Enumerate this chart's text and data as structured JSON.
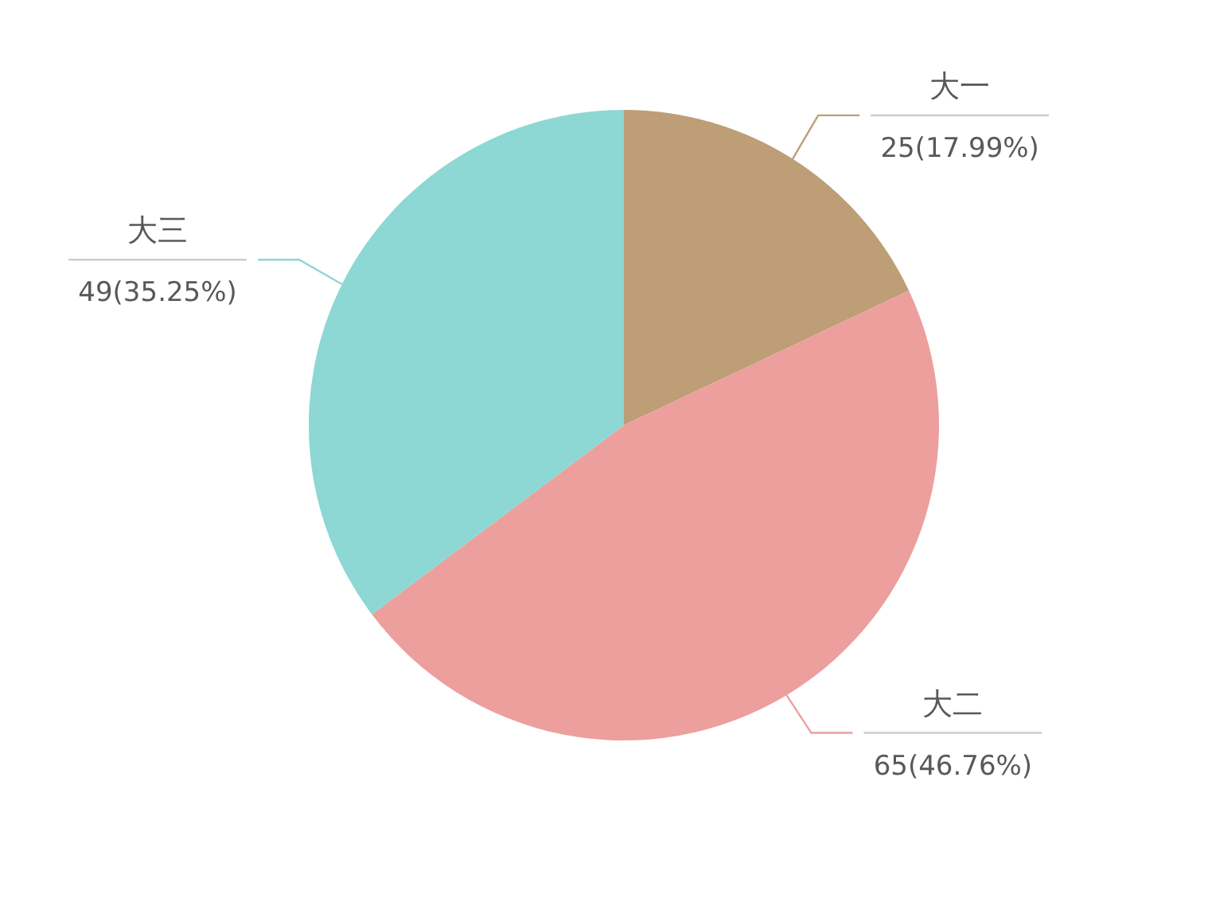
{
  "chart_data": {
    "type": "pie",
    "categories": [
      "大一",
      "大二",
      "大三"
    ],
    "values": [
      25,
      65,
      49
    ],
    "colors": [
      "#bd9e77",
      "#ec9f9c",
      "#8dd7d4"
    ],
    "value_labels": [
      "25(17.99%)",
      "65(46.76%)",
      "49(35.25%)"
    ]
  }
}
